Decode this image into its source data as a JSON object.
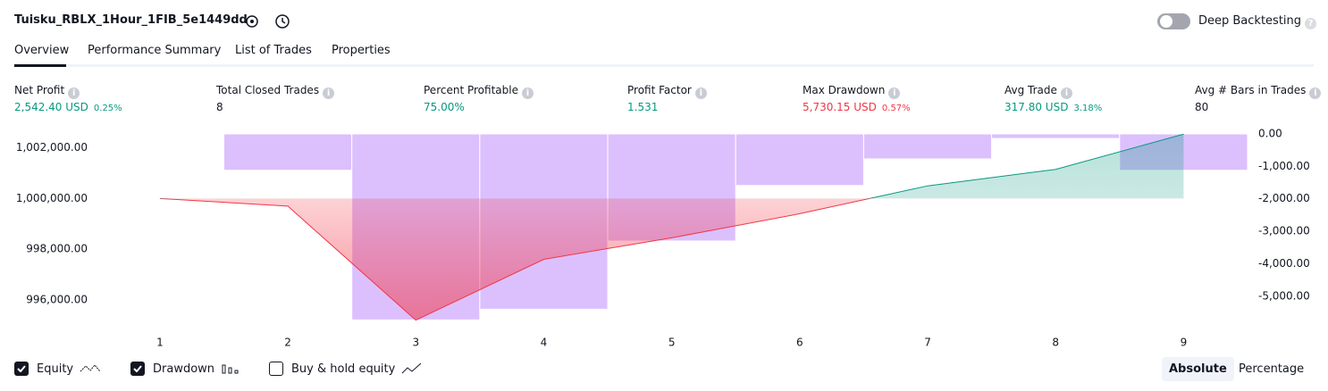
{
  "header": {
    "title": "Tuisku_RBLX_1Hour_1FIB_5e1449dd",
    "deep_backtesting": "Deep Backtesting"
  },
  "tabs": [
    "Overview",
    "Performance Summary",
    "List of Trades",
    "Properties"
  ],
  "metrics": [
    {
      "label": "Net Profit",
      "value": "2,542.40 USD",
      "sub": "0.25%",
      "color": "#089981"
    },
    {
      "label": "Total Closed Trades",
      "value": "8",
      "color": "#131722"
    },
    {
      "label": "Percent Profitable",
      "value": "75.00%",
      "color": "#089981"
    },
    {
      "label": "Profit Factor",
      "value": "1.531",
      "color": "#089981"
    },
    {
      "label": "Max Drawdown",
      "value": "5,730.15 USD",
      "sub": "0.57%",
      "color": "#f23645"
    },
    {
      "label": "Avg Trade",
      "value": "317.80 USD",
      "sub": "3.18%",
      "color": "#089981"
    },
    {
      "label": "Avg # Bars in Trades",
      "value": "80",
      "color": "#131722"
    }
  ],
  "chart_data": {
    "type": "line",
    "categories": [
      "1",
      "2",
      "3",
      "4",
      "5",
      "6",
      "7",
      "8",
      "9"
    ],
    "series": [
      {
        "name": "Equity",
        "checked": true,
        "color": "#f23645",
        "color_up": "#089981",
        "axis": "y",
        "values": [
          1000000,
          999700,
          995200,
          997600,
          998450,
          999400,
          1000500,
          1001150,
          1002542
        ]
      },
      {
        "name": "Drawdown",
        "checked": true,
        "type": "bar",
        "color": "#dcc0fd",
        "axis": "y2",
        "values": [
          0,
          -1120,
          -5730,
          -5400,
          -3300,
          -1590,
          -770,
          -140,
          -1120
        ]
      }
    ],
    "ylim": [
      994800,
      1002550
    ],
    "yticks": [
      {
        "value": 1002000,
        "label": "1,002,000.00"
      },
      {
        "value": 1000000,
        "label": "1,000,000.00"
      },
      {
        "value": 998000,
        "label": "998,000.00"
      },
      {
        "value": 996000,
        "label": "996,000.00"
      }
    ],
    "y2lim": [
      -6050,
      0
    ],
    "y2ticks": [
      {
        "value": 0,
        "label": "0.00"
      },
      {
        "value": -1000,
        "label": "-1,000.00"
      },
      {
        "value": -2000,
        "label": "-2,000.00"
      },
      {
        "value": -3000,
        "label": "-3,000.00"
      },
      {
        "value": -4000,
        "label": "-4,000.00"
      },
      {
        "value": -5000,
        "label": "-5,000.00"
      }
    ]
  },
  "legend_extra": {
    "name": "Buy & hold equity",
    "checked": false
  },
  "scale_buttons": [
    "Absolute",
    "Percentage"
  ]
}
